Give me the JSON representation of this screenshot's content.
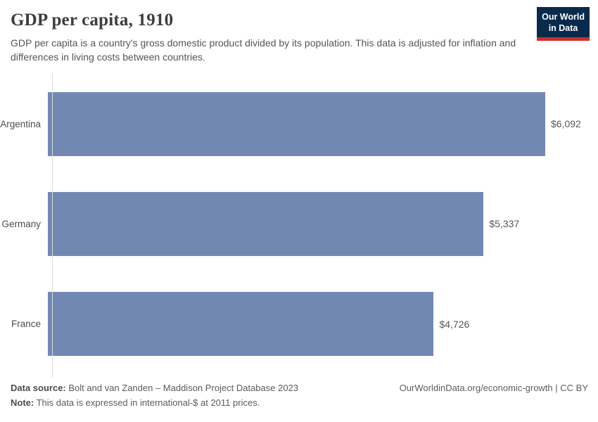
{
  "header": {
    "title": "GDP per capita, 1910",
    "subtitle": "GDP per capita is a country's gross domestic product divided by its population. This data is adjusted for inflation and differences in living costs between countries.",
    "logo": {
      "line1": "Our World",
      "line2": "in Data",
      "bg": "#0a2a4c",
      "accent": "#cc2f2a"
    }
  },
  "chart_data": {
    "type": "bar",
    "orientation": "horizontal",
    "title": "GDP per capita, 1910",
    "categories": [
      "Argentina",
      "Germany",
      "France"
    ],
    "values": [
      6092,
      5337,
      4726
    ],
    "value_labels": [
      "$6,092",
      "$5,337",
      "$4,726"
    ],
    "xlabel": "",
    "ylabel": "",
    "xlim": [
      0,
      6092
    ],
    "unit": "international-$ at 2011 prices",
    "bar_color": "#7189b2",
    "grid": false,
    "legend": "none"
  },
  "footer": {
    "data_source_label": "Data source:",
    "data_source_text": " Bolt and van Zanden – Maddison Project Database 2023",
    "note_label": "Note:",
    "note_text": " This data is expressed in international-$ at 2011 prices.",
    "link": "OurWorldinData.org/economic-growth | CC BY"
  }
}
